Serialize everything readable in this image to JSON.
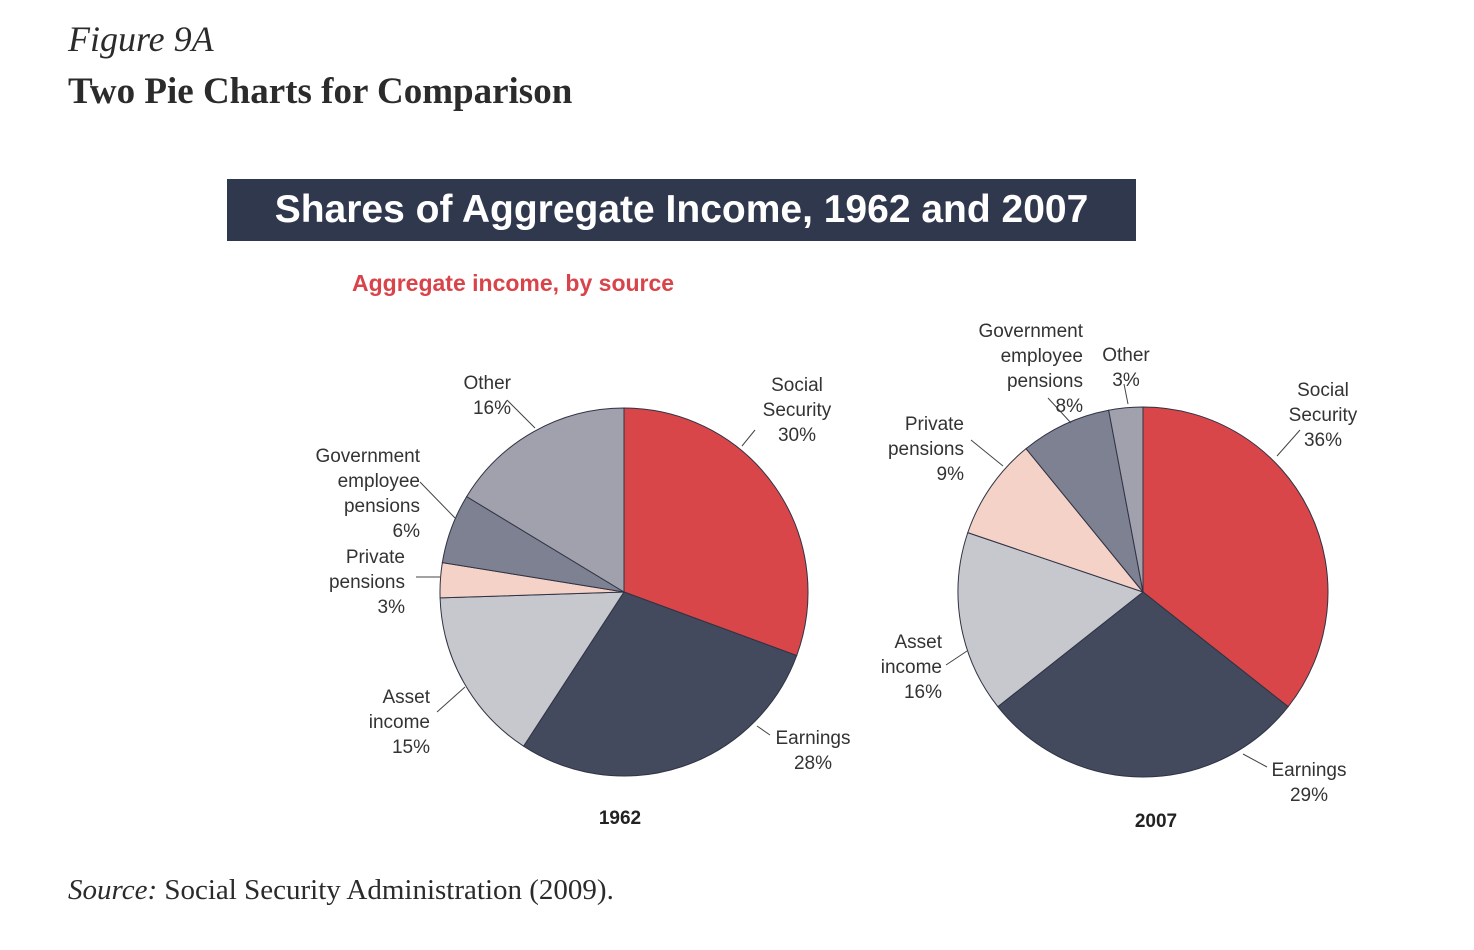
{
  "figure": {
    "label": "Figure 9A",
    "title": "Two Pie Charts for Comparison",
    "banner": "Shares of Aggregate Income, 1962 and 2007",
    "subtitle": "Aggregate income, by source",
    "source_prefix": "Source:",
    "source_text": " Social Security Administration (2009)."
  },
  "chart_data": [
    {
      "type": "pie",
      "title": "1962",
      "slices": [
        {
          "label": "Social Security",
          "value": 30,
          "color": "#d9464a"
        },
        {
          "label": "Earnings",
          "value": 28,
          "color": "#434a5e"
        },
        {
          "label": "Asset income",
          "value": 15,
          "color": "#c7c8ce"
        },
        {
          "label": "Private pensions",
          "value": 3,
          "color": "#f4d2c7"
        },
        {
          "label": "Government employee pensions",
          "value": 6,
          "color": "#7e8191"
        },
        {
          "label": "Other",
          "value": 16,
          "color": "#a1a1ad"
        }
      ],
      "labels": [
        {
          "lines": [
            "Social",
            "Security",
            "30%"
          ]
        },
        {
          "lines": [
            "Earnings",
            "28%"
          ]
        },
        {
          "lines": [
            "Asset",
            "income",
            "15%"
          ]
        },
        {
          "lines": [
            "Private",
            "pensions",
            "3%"
          ]
        },
        {
          "lines": [
            "Government",
            "employee",
            "pensions",
            "6%"
          ]
        },
        {
          "lines": [
            "Other",
            "16%"
          ]
        }
      ]
    },
    {
      "type": "pie",
      "title": "2007",
      "slices": [
        {
          "label": "Social Security",
          "value": 36,
          "color": "#d9464a"
        },
        {
          "label": "Earnings",
          "value": 29,
          "color": "#434a5e"
        },
        {
          "label": "Asset income",
          "value": 16,
          "color": "#c7c8ce"
        },
        {
          "label": "Private pensions",
          "value": 9,
          "color": "#f4d2c7"
        },
        {
          "label": "Government employee pensions",
          "value": 8,
          "color": "#7e8191"
        },
        {
          "label": "Other",
          "value": 3,
          "color": "#a1a1ad"
        }
      ],
      "labels": [
        {
          "lines": [
            "Social",
            "Security",
            "36%"
          ]
        },
        {
          "lines": [
            "Earnings",
            "29%"
          ]
        },
        {
          "lines": [
            "Asset",
            "income",
            "16%"
          ]
        },
        {
          "lines": [
            "Private",
            "pensions",
            "9%"
          ]
        },
        {
          "lines": [
            "Government",
            "employee",
            "pensions",
            "8%"
          ]
        },
        {
          "lines": [
            "Other",
            "3%"
          ]
        }
      ]
    }
  ]
}
